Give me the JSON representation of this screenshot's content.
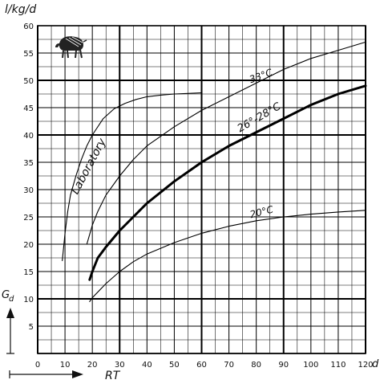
{
  "chart_data": {
    "type": "line",
    "ylabel": "l/kg/d",
    "xlabel": "RT",
    "x_unit": "d",
    "y_symbol": "G",
    "y_symbol_sub": "d",
    "xlim": [
      0,
      120
    ],
    "ylim": [
      0,
      60
    ],
    "x_ticks": [
      0,
      10,
      20,
      30,
      40,
      50,
      60,
      70,
      80,
      90,
      100,
      110,
      120
    ],
    "x_tick_labels": [
      "0",
      "10",
      "20",
      "30",
      "40",
      "50",
      "60",
      "70",
      "80",
      "90",
      "100",
      "110",
      "120"
    ],
    "y_ticks": [
      5,
      10,
      15,
      20,
      25,
      30,
      35,
      40,
      45,
      50,
      55,
      60
    ],
    "y_tick_labels": [
      "5",
      "10",
      "15",
      "20",
      "25",
      "30",
      "35",
      "40",
      "45",
      "50",
      "55",
      "60"
    ],
    "grid": true,
    "icon": "bison-icon",
    "series": [
      {
        "name": "Laboratory",
        "style": "thin",
        "x": [
          9,
          10,
          11,
          12,
          14,
          16,
          18,
          20,
          24,
          28,
          32,
          36,
          40,
          45,
          50,
          55,
          60
        ],
        "y": [
          17,
          22,
          26,
          29,
          32.5,
          35.5,
          38,
          40,
          43,
          44.8,
          45.8,
          46.5,
          47,
          47.3,
          47.5,
          47.6,
          47.7
        ]
      },
      {
        "name": "33°C",
        "style": "thin",
        "x": [
          18,
          20,
          22,
          25,
          30,
          35,
          40,
          50,
          60,
          70,
          80,
          90,
          100,
          110,
          120
        ],
        "y": [
          20,
          23.5,
          26,
          29,
          32.5,
          35.5,
          38,
          41.5,
          44.5,
          47,
          49.5,
          52,
          54,
          55.5,
          57
        ]
      },
      {
        "name": "26°-28°C",
        "style": "bold",
        "x": [
          19,
          20,
          22,
          25,
          30,
          35,
          40,
          50,
          60,
          70,
          80,
          90,
          100,
          110,
          120
        ],
        "y": [
          13.5,
          15,
          17.5,
          19.5,
          22.5,
          25,
          27.5,
          31.5,
          35,
          38,
          40.5,
          43,
          45.5,
          47.5,
          49
        ]
      },
      {
        "name": "20°C",
        "style": "thin",
        "x": [
          19,
          20,
          25,
          30,
          35,
          40,
          50,
          60,
          70,
          80,
          90,
          100,
          110,
          120
        ],
        "y": [
          9.5,
          10.2,
          12.8,
          15,
          16.8,
          18.2,
          20.3,
          22,
          23.3,
          24.3,
          25,
          25.5,
          25.9,
          26.2
        ]
      }
    ]
  }
}
